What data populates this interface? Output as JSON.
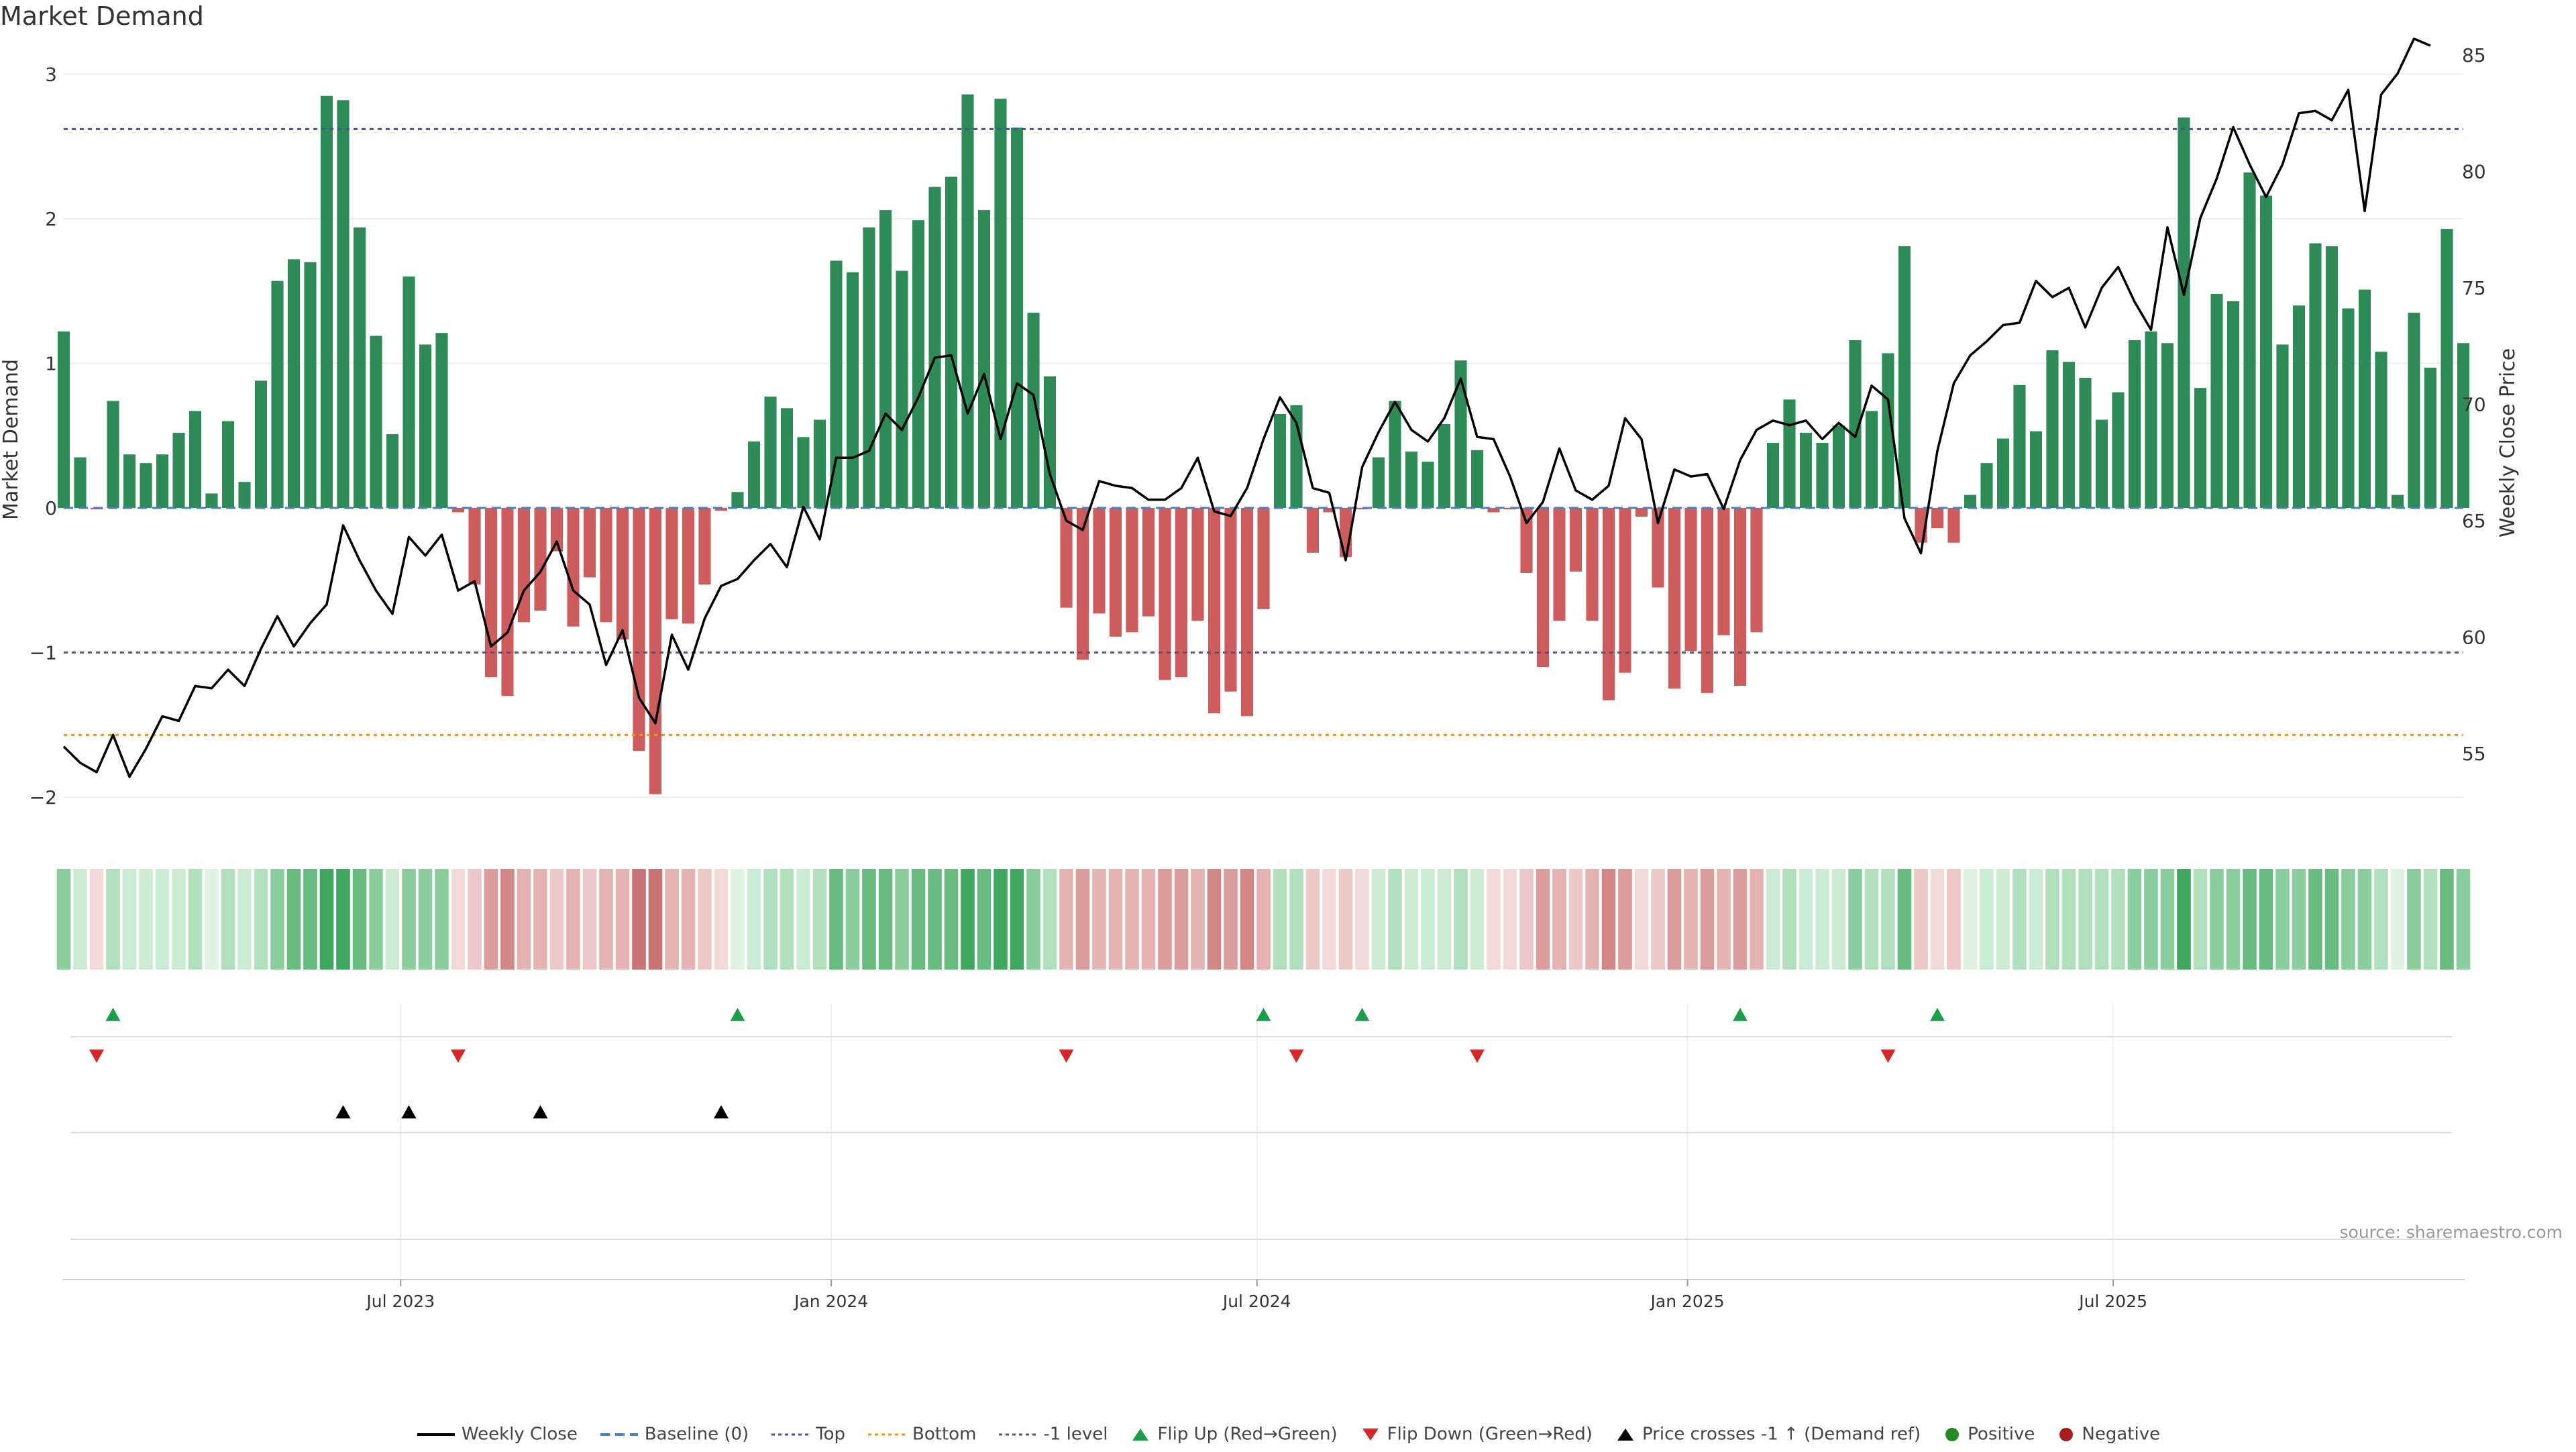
{
  "title": "Market Demand",
  "source": "source: sharemaestro.com",
  "colors": {
    "positive": "#2e8b57",
    "negative": "#cd5c5c",
    "price": "#000000",
    "top": "#4b4bb0",
    "bottom": "#e8962a",
    "minus1": "#555577",
    "flip_up": "#1a9e4a",
    "flip_down": "#d62728",
    "cross": "#000000"
  },
  "legend": [
    {
      "key": "price",
      "label": "Weekly Close",
      "marker": "line"
    },
    {
      "key": "baseline",
      "label": "Baseline (0)",
      "marker": "dash"
    },
    {
      "key": "top",
      "label": "Top",
      "marker": "dot"
    },
    {
      "key": "bottom",
      "label": "Bottom",
      "marker": "dot"
    },
    {
      "key": "minus1",
      "label": "-1 level",
      "marker": "dot"
    },
    {
      "key": "flip_up",
      "label": "Flip Up (Red→Green)",
      "marker": "tri-up"
    },
    {
      "key": "flip_down",
      "label": "Flip Down (Green→Red)",
      "marker": "tri-down"
    },
    {
      "key": "cross",
      "label": "Price crosses -1 ↑ (Demand ref)",
      "marker": "tri-up"
    },
    {
      "key": "positive",
      "label": "Positive",
      "marker": "circle"
    },
    {
      "key": "negative",
      "label": "Negative",
      "marker": "circle"
    }
  ],
  "chart_data": {
    "type": "bar",
    "title": "Market Demand",
    "ylabel": "Market Demand",
    "y2label": "Weekly Close Price",
    "ylim": [
      -2.3,
      3.0
    ],
    "y_ticks": [
      3,
      2,
      1,
      0,
      -1,
      -2
    ],
    "y_tick_labels": [
      "3",
      "2",
      "1",
      "0",
      "−1",
      "−2"
    ],
    "y2lim": [
      52.5,
      86.5
    ],
    "y2_ticks": [
      85,
      80,
      75,
      70,
      65,
      60,
      55
    ],
    "y2_tick_labels": [
      "85",
      "80",
      "75",
      "70",
      "65",
      "60",
      "55"
    ],
    "x_ticks": [
      {
        "index": 20.5,
        "label": "Jul 2023"
      },
      {
        "index": 46.7,
        "label": "Jan 2024"
      },
      {
        "index": 72.6,
        "label": "Jul 2024"
      },
      {
        "index": 98.8,
        "label": "Jan 2025"
      },
      {
        "index": 124.7,
        "label": "Jul 2025"
      }
    ],
    "reference_lines": {
      "top": 2.62,
      "bottom": -1.57,
      "minus1": -1.0,
      "baseline": 0
    },
    "demand": [
      1.22,
      0.35,
      -0.01,
      0.74,
      0.37,
      0.31,
      0.37,
      0.52,
      0.67,
      0.1,
      0.6,
      0.18,
      0.88,
      1.57,
      1.72,
      1.7,
      2.85,
      2.82,
      1.94,
      1.19,
      0.51,
      1.6,
      1.13,
      1.21,
      -0.03,
      -0.53,
      -1.17,
      -1.3,
      -0.79,
      -0.71,
      -0.3,
      -0.82,
      -0.48,
      -0.79,
      -0.91,
      -1.68,
      -1.98,
      -0.77,
      -0.8,
      -0.53,
      -0.02,
      0.11,
      0.46,
      0.77,
      0.69,
      0.49,
      0.61,
      1.71,
      1.63,
      1.94,
      2.06,
      1.64,
      1.99,
      2.22,
      2.29,
      2.86,
      2.06,
      2.83,
      2.63,
      1.35,
      0.91,
      -0.69,
      -1.05,
      -0.73,
      -0.89,
      -0.86,
      -0.75,
      -1.19,
      -1.17,
      -0.78,
      -1.42,
      -1.27,
      -1.44,
      -0.7,
      0.65,
      0.71,
      -0.31,
      -0.03,
      -0.34,
      -0.01,
      0.35,
      0.74,
      0.39,
      0.32,
      0.58,
      1.02,
      0.4,
      -0.03,
      -0.01,
      -0.45,
      -1.1,
      -0.78,
      -0.44,
      -0.78,
      -1.33,
      -1.14,
      -0.06,
      -0.55,
      -1.25,
      -0.99,
      -1.28,
      -0.88,
      -1.23,
      -0.86,
      0.45,
      0.75,
      0.52,
      0.45,
      0.57,
      1.16,
      0.67,
      1.07,
      1.81,
      -0.24,
      -0.14,
      -0.24,
      0.09,
      0.31,
      0.48,
      0.85,
      0.53,
      1.09,
      1.01,
      0.9,
      0.61,
      0.8,
      1.16,
      1.22,
      1.14,
      2.7,
      0.83,
      1.48,
      1.43,
      2.32,
      2.16,
      1.13,
      1.4,
      1.83,
      1.81,
      1.38,
      1.51,
      1.08,
      0.09,
      1.35,
      0.97,
      1.93,
      1.14
    ],
    "price": [
      55.3,
      54.6,
      54.2,
      55.8,
      54.0,
      55.2,
      56.6,
      56.4,
      57.9,
      57.8,
      58.6,
      57.9,
      59.5,
      60.9,
      59.6,
      60.6,
      61.4,
      64.8,
      63.3,
      62.0,
      61.0,
      64.3,
      63.5,
      64.4,
      62.0,
      62.4,
      59.6,
      60.2,
      62.0,
      62.8,
      64.1,
      62.0,
      61.4,
      58.8,
      60.3,
      57.4,
      56.3,
      60.1,
      58.6,
      60.8,
      62.2,
      62.5,
      63.3,
      64.0,
      63.0,
      65.6,
      64.2,
      67.7,
      67.7,
      68.0,
      69.6,
      68.9,
      70.3,
      72.0,
      72.1,
      69.6,
      71.3,
      68.5,
      70.9,
      70.4,
      67.0,
      65.0,
      64.6,
      66.7,
      66.5,
      66.4,
      65.9,
      65.9,
      66.4,
      67.7,
      65.4,
      65.2,
      66.4,
      68.5,
      70.3,
      69.2,
      66.4,
      66.2,
      63.3,
      67.3,
      68.8,
      70.1,
      68.9,
      68.4,
      69.4,
      71.1,
      68.6,
      68.5,
      66.9,
      64.9,
      65.8,
      68.1,
      66.3,
      65.9,
      66.5,
      69.4,
      68.5,
      64.9,
      67.2,
      66.9,
      67.0,
      65.5,
      67.6,
      68.9,
      69.3,
      69.1,
      69.3,
      68.5,
      69.2,
      68.6,
      70.8,
      70.2,
      65.1,
      63.6,
      68.0,
      70.9,
      72.1,
      72.7,
      73.4,
      73.5,
      75.3,
      74.6,
      75.0,
      73.3,
      75.0,
      75.9,
      74.4,
      73.2,
      77.6,
      74.7,
      78.0,
      79.7,
      81.9,
      80.3,
      78.9,
      80.3,
      82.5,
      82.6,
      82.2,
      83.5,
      78.3,
      83.3,
      84.2,
      85.7,
      85.4
    ],
    "flip_up": [
      3,
      41,
      73,
      79,
      102,
      114
    ],
    "flip_down": [
      2,
      24,
      61,
      75,
      86,
      111
    ],
    "price_cross": [
      17,
      21,
      29,
      40
    ]
  }
}
